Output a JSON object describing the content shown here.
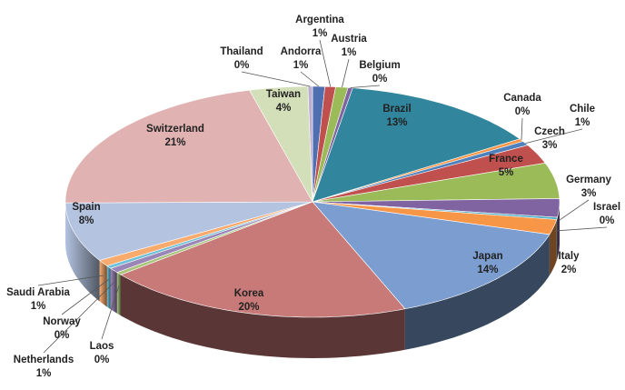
{
  "chart_data": {
    "type": "pie3d",
    "categories": [
      "Andorra",
      "Argentina",
      "Austria",
      "Belgium",
      "Brazil",
      "Canada",
      "Chile",
      "Czech",
      "France",
      "Germany",
      "Israel",
      "Italy",
      "Japan",
      "Korea",
      "Laos",
      "Netherlands",
      "Norway",
      "Saudi Arabia",
      "Spain",
      "Switzerland",
      "Taiwan",
      "Thailand"
    ],
    "values": [
      0.8,
      0.7,
      0.8,
      0.3,
      13.2,
      0.4,
      0.6,
      2.7,
      5,
      2.6,
      0.3,
      2.1,
      14.3,
      20.2,
      0.4,
      0.7,
      0.4,
      0.9,
      8.3,
      21,
      3.8,
      0.3
    ],
    "value_labels": [
      "1%",
      "1%",
      "1%",
      "0%",
      "13%",
      "0%",
      "1%",
      "3%",
      "5%",
      "3%",
      "0%",
      "2%",
      "14%",
      "20%",
      "0%",
      "1%",
      "0%",
      "1%",
      "8%",
      "21%",
      "4%",
      "0%"
    ],
    "colors": [
      "#4f6fb0",
      "#c0504d",
      "#9bbb59",
      "#8064a2",
      "#31859c",
      "#f79646",
      "#4f81bd",
      "#c0504d",
      "#9bbb59",
      "#8064a2",
      "#4bacc6",
      "#f79646",
      "#7b9dd0",
      "#c77a78",
      "#a9c47a",
      "#9b86b8",
      "#6fbfd6",
      "#f9ab6e",
      "#b3c3e0",
      "#e0b2b1",
      "#d2dfb8",
      "#bcaed0"
    ]
  }
}
